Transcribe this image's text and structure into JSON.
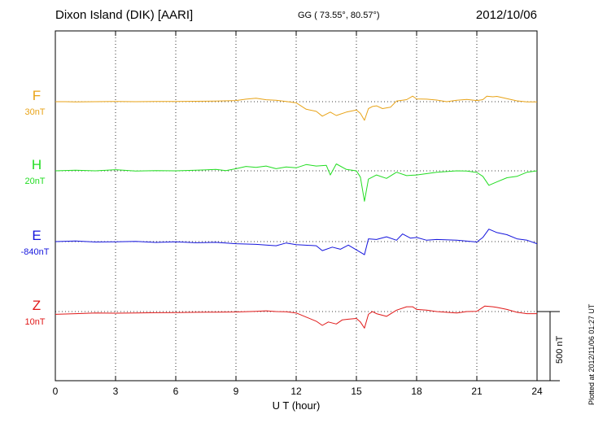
{
  "header": {
    "station": "Dixon Island (DIK)  [AARI]",
    "coords": "GG ( 73.55°,  80.57°)",
    "date": "2012/10/06"
  },
  "footnote": "Plotted at 2012/11/06 01:27 UT",
  "scale_label": "500 nT",
  "chart_data": {
    "type": "line",
    "title": "Dixon Island (DIK)  [AARI]",
    "xlabel": "U T (hour)",
    "ylabel": "",
    "xlim": [
      0,
      24
    ],
    "xticks": [
      0,
      3,
      6,
      9,
      12,
      15,
      18,
      21,
      24
    ],
    "grid": "dotted",
    "scale_bar_nT": 500,
    "channels": [
      {
        "name": "F",
        "baseline_label": "30nT",
        "color": "#e8a317",
        "points": [
          [
            0,
            30
          ],
          [
            0.5,
            30
          ],
          [
            1,
            28
          ],
          [
            2,
            30
          ],
          [
            3,
            31
          ],
          [
            4,
            30
          ],
          [
            5,
            32
          ],
          [
            6,
            31
          ],
          [
            7,
            33
          ],
          [
            8,
            35
          ],
          [
            9,
            38
          ],
          [
            9.5,
            48
          ],
          [
            10,
            55
          ],
          [
            10.5,
            44
          ],
          [
            11,
            40
          ],
          [
            11.5,
            32
          ],
          [
            12,
            22
          ],
          [
            12.5,
            -25
          ],
          [
            13,
            -40
          ],
          [
            13.3,
            -75
          ],
          [
            13.7,
            -45
          ],
          [
            14,
            -70
          ],
          [
            14.5,
            -45
          ],
          [
            15,
            -30
          ],
          [
            15.2,
            -55
          ],
          [
            15.4,
            -105
          ],
          [
            15.6,
            -20
          ],
          [
            15.8,
            -5
          ],
          [
            16,
            0
          ],
          [
            16.3,
            -20
          ],
          [
            16.7,
            -10
          ],
          [
            17,
            35
          ],
          [
            17.5,
            45
          ],
          [
            17.8,
            70
          ],
          [
            18,
            50
          ],
          [
            18.5,
            48
          ],
          [
            19,
            42
          ],
          [
            19.5,
            30
          ],
          [
            20,
            40
          ],
          [
            20.5,
            46
          ],
          [
            21,
            38
          ],
          [
            21.3,
            45
          ],
          [
            21.5,
            70
          ],
          [
            21.8,
            65
          ],
          [
            22,
            68
          ],
          [
            22.5,
            52
          ],
          [
            23,
            36
          ],
          [
            23.5,
            28
          ],
          [
            24,
            28
          ]
        ]
      },
      {
        "name": "H",
        "baseline_label": "20nT",
        "color": "#22dd22",
        "points": [
          [
            0,
            20
          ],
          [
            1,
            24
          ],
          [
            2,
            20
          ],
          [
            3,
            28
          ],
          [
            4,
            18
          ],
          [
            5,
            22
          ],
          [
            6,
            20
          ],
          [
            7,
            24
          ],
          [
            8,
            30
          ],
          [
            8.5,
            22
          ],
          [
            9,
            35
          ],
          [
            9.5,
            52
          ],
          [
            10,
            45
          ],
          [
            10.5,
            55
          ],
          [
            11,
            35
          ],
          [
            11.5,
            48
          ],
          [
            12,
            42
          ],
          [
            12.5,
            65
          ],
          [
            13,
            55
          ],
          [
            13.5,
            60
          ],
          [
            13.7,
            -10
          ],
          [
            14,
            70
          ],
          [
            14.5,
            30
          ],
          [
            15,
            20
          ],
          [
            15.2,
            -25
          ],
          [
            15.4,
            -200
          ],
          [
            15.6,
            -40
          ],
          [
            16,
            -10
          ],
          [
            16.5,
            -35
          ],
          [
            17,
            10
          ],
          [
            17.5,
            -15
          ],
          [
            18,
            -10
          ],
          [
            19,
            10
          ],
          [
            20,
            20
          ],
          [
            20.5,
            18
          ],
          [
            21,
            8
          ],
          [
            21.3,
            -20
          ],
          [
            21.6,
            -85
          ],
          [
            22,
            -60
          ],
          [
            22.5,
            -30
          ],
          [
            23,
            -20
          ],
          [
            23.5,
            10
          ],
          [
            24,
            20
          ]
        ]
      },
      {
        "name": "E",
        "baseline_label": "-840nT",
        "color": "#1515dd",
        "points": [
          [
            0,
            -840
          ],
          [
            1,
            -836
          ],
          [
            2,
            -843
          ],
          [
            3,
            -842
          ],
          [
            4,
            -838
          ],
          [
            5,
            -846
          ],
          [
            6,
            -842
          ],
          [
            7,
            -848
          ],
          [
            8,
            -845
          ],
          [
            9,
            -855
          ],
          [
            10,
            -860
          ],
          [
            11,
            -870
          ],
          [
            11.5,
            -850
          ],
          [
            12,
            -862
          ],
          [
            13,
            -870
          ],
          [
            13.3,
            -905
          ],
          [
            13.8,
            -880
          ],
          [
            14.2,
            -895
          ],
          [
            14.6,
            -865
          ],
          [
            15,
            -900
          ],
          [
            15.4,
            -935
          ],
          [
            15.6,
            -820
          ],
          [
            16,
            -825
          ],
          [
            16.5,
            -805
          ],
          [
            17,
            -830
          ],
          [
            17.3,
            -785
          ],
          [
            17.7,
            -815
          ],
          [
            18,
            -810
          ],
          [
            18.5,
            -830
          ],
          [
            19,
            -825
          ],
          [
            20,
            -830
          ],
          [
            21,
            -843
          ],
          [
            21.3,
            -810
          ],
          [
            21.6,
            -750
          ],
          [
            22,
            -775
          ],
          [
            22.5,
            -790
          ],
          [
            23,
            -820
          ],
          [
            23.5,
            -830
          ],
          [
            24,
            -855
          ]
        ]
      },
      {
        "name": "Z",
        "baseline_label": "10nT",
        "color": "#e01818",
        "points": [
          [
            0,
            -10
          ],
          [
            1,
            -5
          ],
          [
            2,
            0
          ],
          [
            3,
            -2
          ],
          [
            4,
            0
          ],
          [
            5,
            2
          ],
          [
            6,
            3
          ],
          [
            7,
            5
          ],
          [
            8,
            6
          ],
          [
            9,
            7
          ],
          [
            10,
            12
          ],
          [
            10.5,
            15
          ],
          [
            11,
            10
          ],
          [
            11.5,
            8
          ],
          [
            12,
            0
          ],
          [
            12.5,
            -30
          ],
          [
            13,
            -60
          ],
          [
            13.3,
            -90
          ],
          [
            13.6,
            -65
          ],
          [
            14,
            -80
          ],
          [
            14.3,
            -50
          ],
          [
            14.6,
            -45
          ],
          [
            15,
            -40
          ],
          [
            15.2,
            -65
          ],
          [
            15.4,
            -110
          ],
          [
            15.6,
            -10
          ],
          [
            15.8,
            10
          ],
          [
            16,
            -5
          ],
          [
            16.5,
            -25
          ],
          [
            17,
            20
          ],
          [
            17.5,
            45
          ],
          [
            17.8,
            45
          ],
          [
            18,
            25
          ],
          [
            18.5,
            20
          ],
          [
            19,
            10
          ],
          [
            19.5,
            5
          ],
          [
            20,
            0
          ],
          [
            20.5,
            10
          ],
          [
            21,
            12
          ],
          [
            21.4,
            50
          ],
          [
            21.8,
            45
          ],
          [
            22,
            40
          ],
          [
            22.5,
            25
          ],
          [
            23,
            5
          ],
          [
            23.5,
            -5
          ],
          [
            24,
            -5
          ]
        ]
      }
    ]
  }
}
